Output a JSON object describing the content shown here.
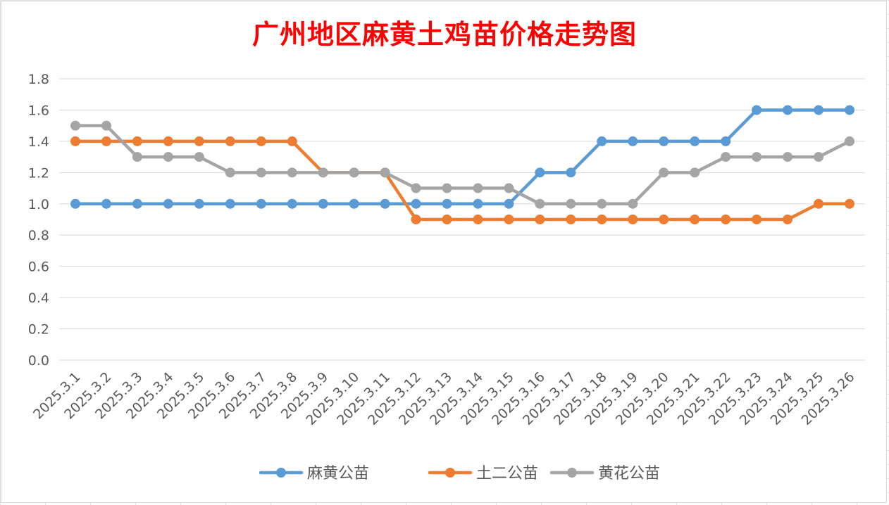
{
  "chart_data": {
    "type": "line",
    "title": "广州地区麻黄土鸡苗价格走势图",
    "xlabel": "",
    "ylabel": "",
    "ylim": [
      0,
      1.8
    ],
    "y_ticks": [
      "0.0",
      "0.2",
      "0.4",
      "0.6",
      "0.8",
      "1.0",
      "1.2",
      "1.4",
      "1.6",
      "1.8"
    ],
    "grid": true,
    "legend_position": "bottom",
    "categories": [
      "2025.3.1",
      "2025.3.2",
      "2025.3.3",
      "2025.3.4",
      "2025.3.5",
      "2025.3.6",
      "2025.3.7",
      "2025.3.8",
      "2025.3.9",
      "2025.3.10",
      "2025.3.11",
      "2025.3.12",
      "2025.3.13",
      "2025.3.14",
      "2025.3.15",
      "2025.3.16",
      "2025.3.17",
      "2025.3.18",
      "2025.3.19",
      "2025.3.20",
      "2025.3.21",
      "2025.3.22",
      "2025.3.23",
      "2025.3.24",
      "2025.3.25",
      "2025.3.26"
    ],
    "series": [
      {
        "name": "麻黄公苗",
        "color": "#5b9bd5",
        "values": [
          1.0,
          1.0,
          1.0,
          1.0,
          1.0,
          1.0,
          1.0,
          1.0,
          1.0,
          1.0,
          1.0,
          1.0,
          1.0,
          1.0,
          1.0,
          1.2,
          1.2,
          1.4,
          1.4,
          1.4,
          1.4,
          1.4,
          1.6,
          1.6,
          1.6,
          1.6
        ]
      },
      {
        "name": "土二公苗",
        "color": "#ed7d31",
        "values": [
          1.4,
          1.4,
          1.4,
          1.4,
          1.4,
          1.4,
          1.4,
          1.4,
          1.2,
          1.2,
          1.2,
          0.9,
          0.9,
          0.9,
          0.9,
          0.9,
          0.9,
          0.9,
          0.9,
          0.9,
          0.9,
          0.9,
          0.9,
          0.9,
          1.0,
          1.0
        ]
      },
      {
        "name": "黄花公苗",
        "color": "#a5a5a5",
        "values": [
          1.5,
          1.5,
          1.3,
          1.3,
          1.3,
          1.2,
          1.2,
          1.2,
          1.2,
          1.2,
          1.2,
          1.1,
          1.1,
          1.1,
          1.1,
          1.0,
          1.0,
          1.0,
          1.0,
          1.2,
          1.2,
          1.3,
          1.3,
          1.3,
          1.3,
          1.4
        ]
      }
    ]
  }
}
